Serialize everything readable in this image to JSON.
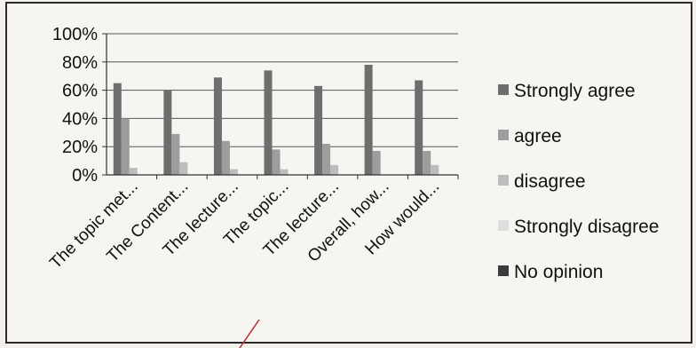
{
  "chart_data": {
    "type": "bar",
    "categories": [
      "The topic met...",
      "The Content...",
      "The lecture...",
      "The topic...",
      "The lecture...",
      "Overall, how...",
      "How would..."
    ],
    "series": [
      {
        "name": "Strongly agree",
        "color": "#6e6e6e",
        "values": [
          65,
          60,
          69,
          74,
          63,
          78,
          67
        ]
      },
      {
        "name": "agree",
        "color": "#9d9d9d",
        "values": [
          40,
          29,
          24,
          18,
          22,
          17,
          17
        ]
      },
      {
        "name": "disagree",
        "color": "#bdbdbd",
        "values": [
          5,
          9,
          4,
          4,
          7,
          0,
          7
        ]
      },
      {
        "name": "Strongly disagree",
        "color": "#dedede",
        "values": [
          0,
          0,
          0,
          0,
          0,
          0,
          0
        ]
      },
      {
        "name": "No opinion",
        "color": "#3a3a3a",
        "values": [
          0,
          0,
          0,
          0,
          0,
          0,
          0
        ]
      }
    ],
    "yticks": [
      "0%",
      "20%",
      "40%",
      "60%",
      "80%",
      "100%"
    ],
    "ylim": [
      0,
      100
    ],
    "grid": true,
    "legend": "right"
  }
}
